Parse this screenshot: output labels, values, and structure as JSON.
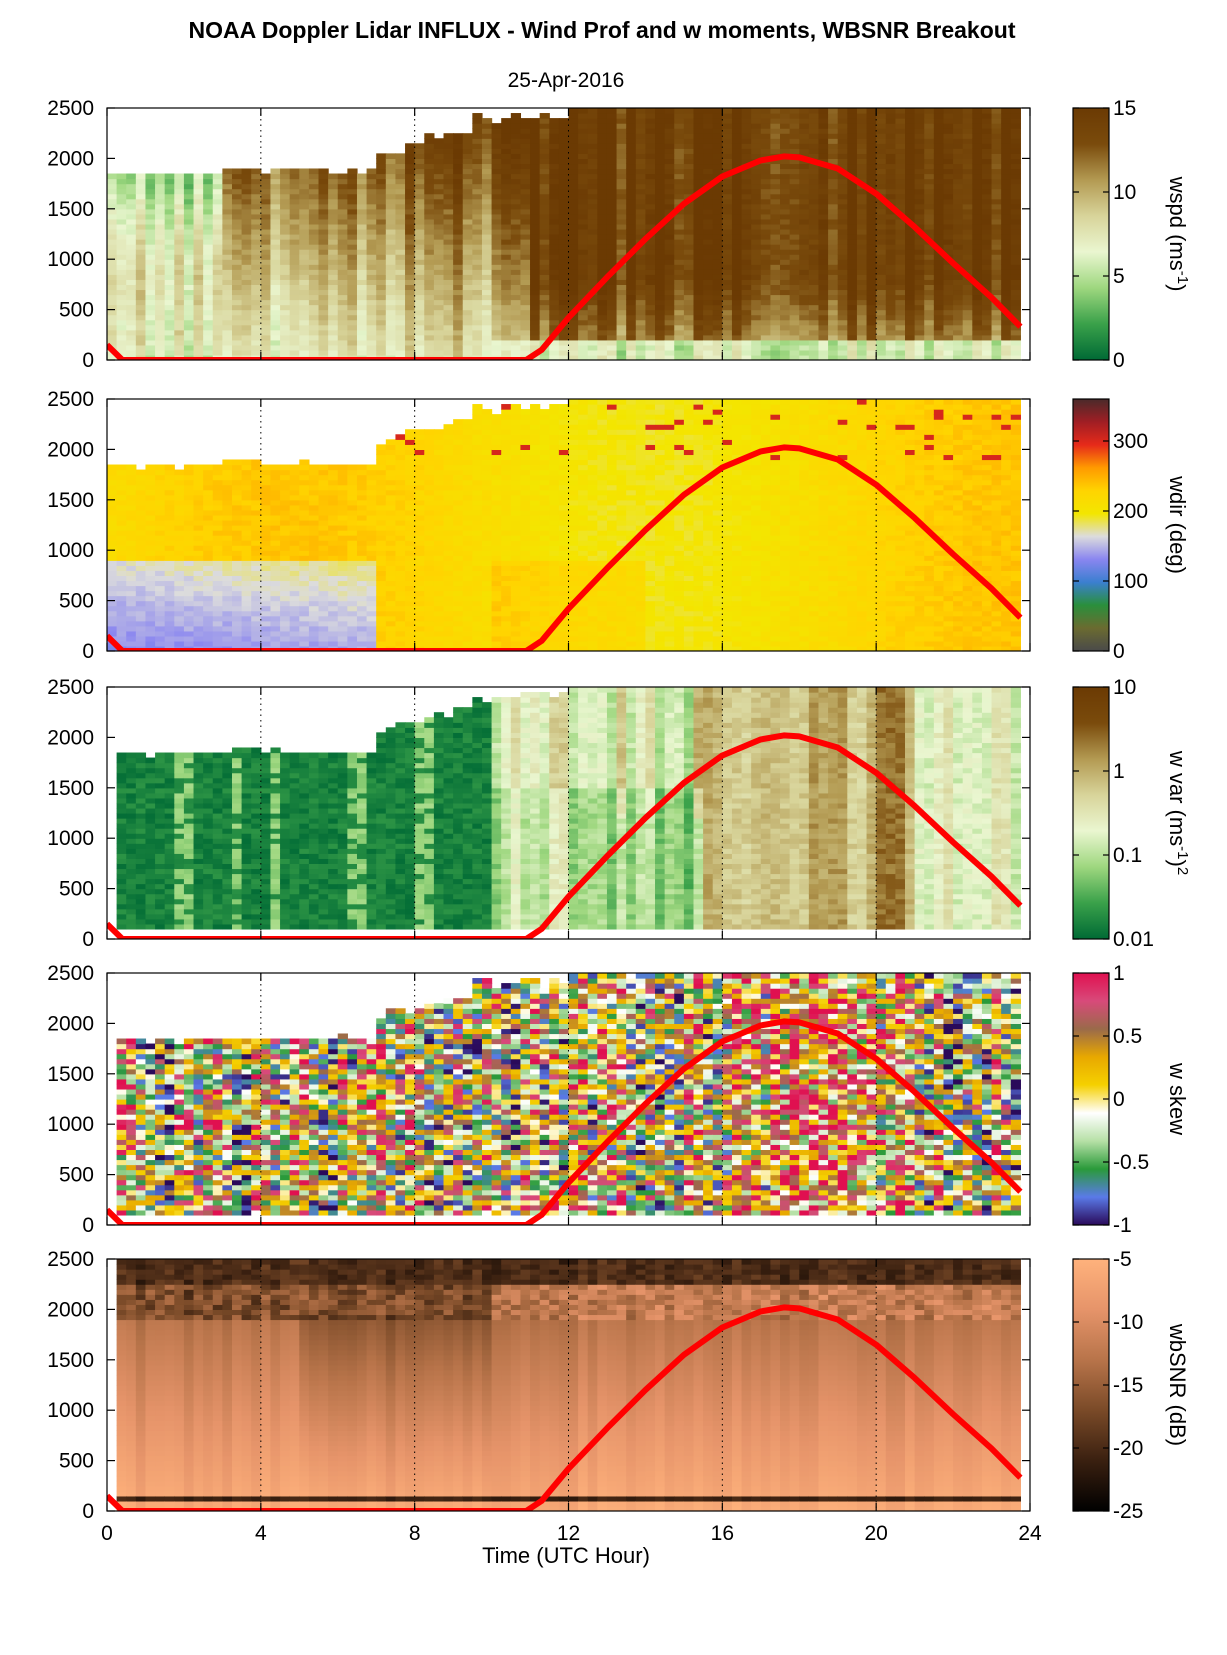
{
  "figure": {
    "title": "NOAA Doppler Lidar INFLUX - Wind Prof and w moments, WBSNR Breakout",
    "subtitle": "25-Apr-2016",
    "xlabel": "Time (UTC Hour)"
  },
  "chart_data": [
    {
      "type": "heatmap",
      "title": "",
      "variable": "wspd",
      "colorbar_label": "wspd (ms-1)",
      "colorbar_label_parts": {
        "main": "wspd (ms",
        "sup": "-1",
        "tail": ")"
      },
      "colorbar_ticks": [
        "0",
        "5",
        "10",
        "15"
      ],
      "colorbar_range": [
        0,
        15
      ],
      "colormap": [
        "#006a35",
        "#3aa14a",
        "#9ed77f",
        "#eaf6d0",
        "#d8d49a",
        "#b39a52",
        "#7a4b0c",
        "#6b3a03"
      ],
      "x": [
        0,
        24
      ],
      "xlim": [
        0,
        24
      ],
      "ylim": [
        0,
        2500
      ],
      "y_ticks": [
        "0",
        "500",
        "1000",
        "1500",
        "2000",
        "2500"
      ],
      "x_ticks": [
        "0",
        "4",
        "8",
        "12",
        "16",
        "20",
        "24"
      ],
      "grid": "vertical dotted"
    },
    {
      "type": "heatmap",
      "title": "",
      "variable": "wdir",
      "colorbar_label": "wdir (deg)",
      "colorbar_label_parts": {
        "main": "wdir (deg)",
        "sup": "",
        "tail": ""
      },
      "colorbar_ticks": [
        "0",
        "100",
        "200",
        "300"
      ],
      "colorbar_range": [
        0,
        360
      ],
      "colormap": [
        "#4a4a4a",
        "#6b6b30",
        "#2a8f3c",
        "#3b7fd0",
        "#8a86f0",
        "#dcdcdc",
        "#f3e600",
        "#ffd400",
        "#ff9a00",
        "#e62a1a",
        "#a01e24",
        "#4a2a2a"
      ],
      "x": [
        0,
        24
      ],
      "xlim": [
        0,
        24
      ],
      "ylim": [
        0,
        2500
      ],
      "y_ticks": [
        "0",
        "500",
        "1000",
        "1500",
        "2000",
        "2500"
      ],
      "x_ticks": [
        "0",
        "4",
        "8",
        "12",
        "16",
        "20",
        "24"
      ],
      "grid": "vertical dotted"
    },
    {
      "type": "heatmap",
      "title": "",
      "variable": "w var",
      "colorbar_label": "w var (ms-1)2",
      "colorbar_label_parts": {
        "main": "w var (ms",
        "sup": "-1",
        "tail": ")2"
      },
      "colorbar_ticks": [
        "0.01",
        "0.1",
        "1",
        "10"
      ],
      "colorbar_range": [
        0.01,
        10
      ],
      "colorbar_scale": "log",
      "colormap": [
        "#006a35",
        "#3aa14a",
        "#9ed77f",
        "#eaf6d0",
        "#d8d49a",
        "#b39a52",
        "#7a4b0c",
        "#6b3a03"
      ],
      "x": [
        0,
        24
      ],
      "xlim": [
        0,
        24
      ],
      "ylim": [
        0,
        2500
      ],
      "y_ticks": [
        "0",
        "500",
        "1000",
        "1500",
        "2000",
        "2500"
      ],
      "x_ticks": [
        "0",
        "4",
        "8",
        "12",
        "16",
        "20",
        "24"
      ],
      "grid": "vertical dotted"
    },
    {
      "type": "heatmap",
      "title": "",
      "variable": "w skew",
      "colorbar_label": "w skew",
      "colorbar_label_parts": {
        "main": "w skew",
        "sup": "",
        "tail": ""
      },
      "colorbar_ticks": [
        "-1",
        "-0.5",
        "0",
        "0.5",
        "1"
      ],
      "colorbar_range": [
        -1,
        1
      ],
      "colormap": [
        "#2a0a5a",
        "#5a7ae8",
        "#2a9a3a",
        "#b6e0a6",
        "#ffffff",
        "#f5d000",
        "#e8a800",
        "#9a6a4a",
        "#d84a7a",
        "#e01050"
      ],
      "x": [
        0,
        24
      ],
      "xlim": [
        0,
        24
      ],
      "ylim": [
        0,
        2500
      ],
      "y_ticks": [
        "0",
        "500",
        "1000",
        "1500",
        "2000",
        "2500"
      ],
      "x_ticks": [
        "0",
        "4",
        "8",
        "12",
        "16",
        "20",
        "24"
      ],
      "grid": "vertical dotted"
    },
    {
      "type": "heatmap",
      "title": "",
      "variable": "wbSNR",
      "colorbar_label": "wbSNR (dB)",
      "colorbar_label_parts": {
        "main": "wbSNR (dB)",
        "sup": "",
        "tail": ""
      },
      "colorbar_ticks": [
        "-25",
        "-20",
        "-15",
        "-10",
        "-5"
      ],
      "colorbar_range": [
        -25,
        -5
      ],
      "colormap": [
        "#000000",
        "#3a2010",
        "#7a4a28",
        "#b8744a",
        "#e6946a",
        "#ffb27c"
      ],
      "x": [
        0,
        24
      ],
      "xlim": [
        0,
        24
      ],
      "ylim": [
        0,
        2500
      ],
      "y_ticks": [
        "0",
        "500",
        "1000",
        "1500",
        "2000",
        "2500"
      ],
      "x_ticks": [
        "0",
        "4",
        "8",
        "12",
        "16",
        "20",
        "24"
      ],
      "grid": "vertical dotted"
    }
  ],
  "overlay_line": {
    "color": "#ff0000",
    "x": [
      0,
      0.4,
      1,
      2,
      4,
      6,
      8,
      10,
      10.9,
      11.3,
      12,
      13,
      14,
      15,
      16,
      17,
      17.6,
      18,
      19,
      20,
      21,
      22,
      23,
      23.75
    ],
    "y": [
      150,
      0,
      0,
      0,
      0,
      0,
      0,
      0,
      0,
      100,
      420,
      820,
      1200,
      1550,
      1820,
      1980,
      2020,
      2010,
      1900,
      1650,
      1320,
      960,
      620,
      330
    ]
  }
}
